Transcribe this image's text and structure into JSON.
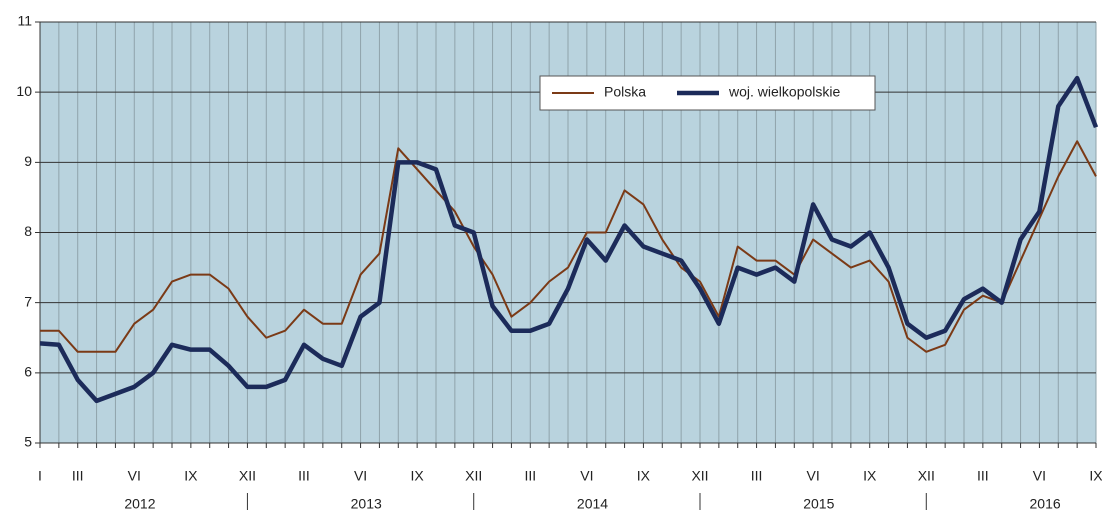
{
  "chart_data": {
    "type": "line",
    "categories": [
      "I",
      null,
      "III",
      null,
      null,
      "VI",
      null,
      null,
      "IX",
      null,
      null,
      "XII",
      null,
      null,
      "III",
      null,
      null,
      "VI",
      null,
      null,
      "IX",
      null,
      null,
      "XII",
      null,
      null,
      "III",
      null,
      null,
      "VI",
      null,
      null,
      "IX",
      null,
      null,
      "XII",
      null,
      null,
      "III",
      null,
      null,
      "VI",
      null,
      null,
      "IX",
      null,
      null,
      "XII",
      null,
      null,
      "III",
      null,
      null,
      "VI",
      null,
      null,
      "IX"
    ],
    "year_labels": [
      "2012",
      "2013",
      "2014",
      "2015",
      "2016"
    ],
    "series": [
      {
        "name": "Polska",
        "color": "#7b3a16",
        "width": 2,
        "values": [
          6.6,
          6.6,
          6.3,
          6.3,
          6.3,
          6.7,
          6.9,
          7.3,
          7.4,
          7.4,
          7.2,
          6.8,
          6.5,
          6.6,
          6.9,
          6.7,
          6.7,
          7.4,
          7.7,
          9.2,
          8.9,
          8.6,
          8.3,
          7.8,
          7.4,
          6.8,
          7.0,
          7.3,
          7.5,
          8.0,
          8.0,
          8.6,
          8.4,
          7.9,
          7.5,
          7.3,
          6.8,
          7.8,
          7.6,
          7.6,
          7.4,
          7.9,
          7.7,
          7.5,
          7.6,
          7.3,
          6.5,
          6.3,
          6.4,
          6.9,
          7.1,
          7.0,
          7.6,
          8.2,
          8.8,
          9.3,
          8.8
        ]
      },
      {
        "name": "woj. wielkopolskie",
        "color": "#1c2b5a",
        "width": 4.5,
        "values": [
          6.42,
          6.4,
          5.9,
          5.6,
          5.7,
          5.8,
          6.0,
          6.4,
          6.33,
          6.33,
          6.1,
          5.8,
          5.8,
          5.9,
          6.4,
          6.2,
          6.1,
          6.8,
          7.0,
          9.0,
          9.0,
          8.9,
          8.1,
          8.0,
          6.95,
          6.6,
          6.6,
          6.7,
          7.2,
          7.9,
          7.6,
          8.1,
          7.8,
          7.7,
          7.6,
          7.2,
          6.7,
          7.5,
          7.4,
          7.5,
          7.3,
          8.4,
          7.9,
          7.8,
          8.0,
          7.5,
          6.7,
          6.5,
          6.6,
          7.05,
          7.2,
          7.0,
          7.9,
          8.3,
          9.8,
          10.2,
          9.5
        ]
      }
    ],
    "ylim": [
      5,
      11
    ],
    "yticks": [
      5,
      6,
      7,
      8,
      9,
      10,
      11
    ],
    "grid": true,
    "plot_color": "#b9d3de"
  }
}
